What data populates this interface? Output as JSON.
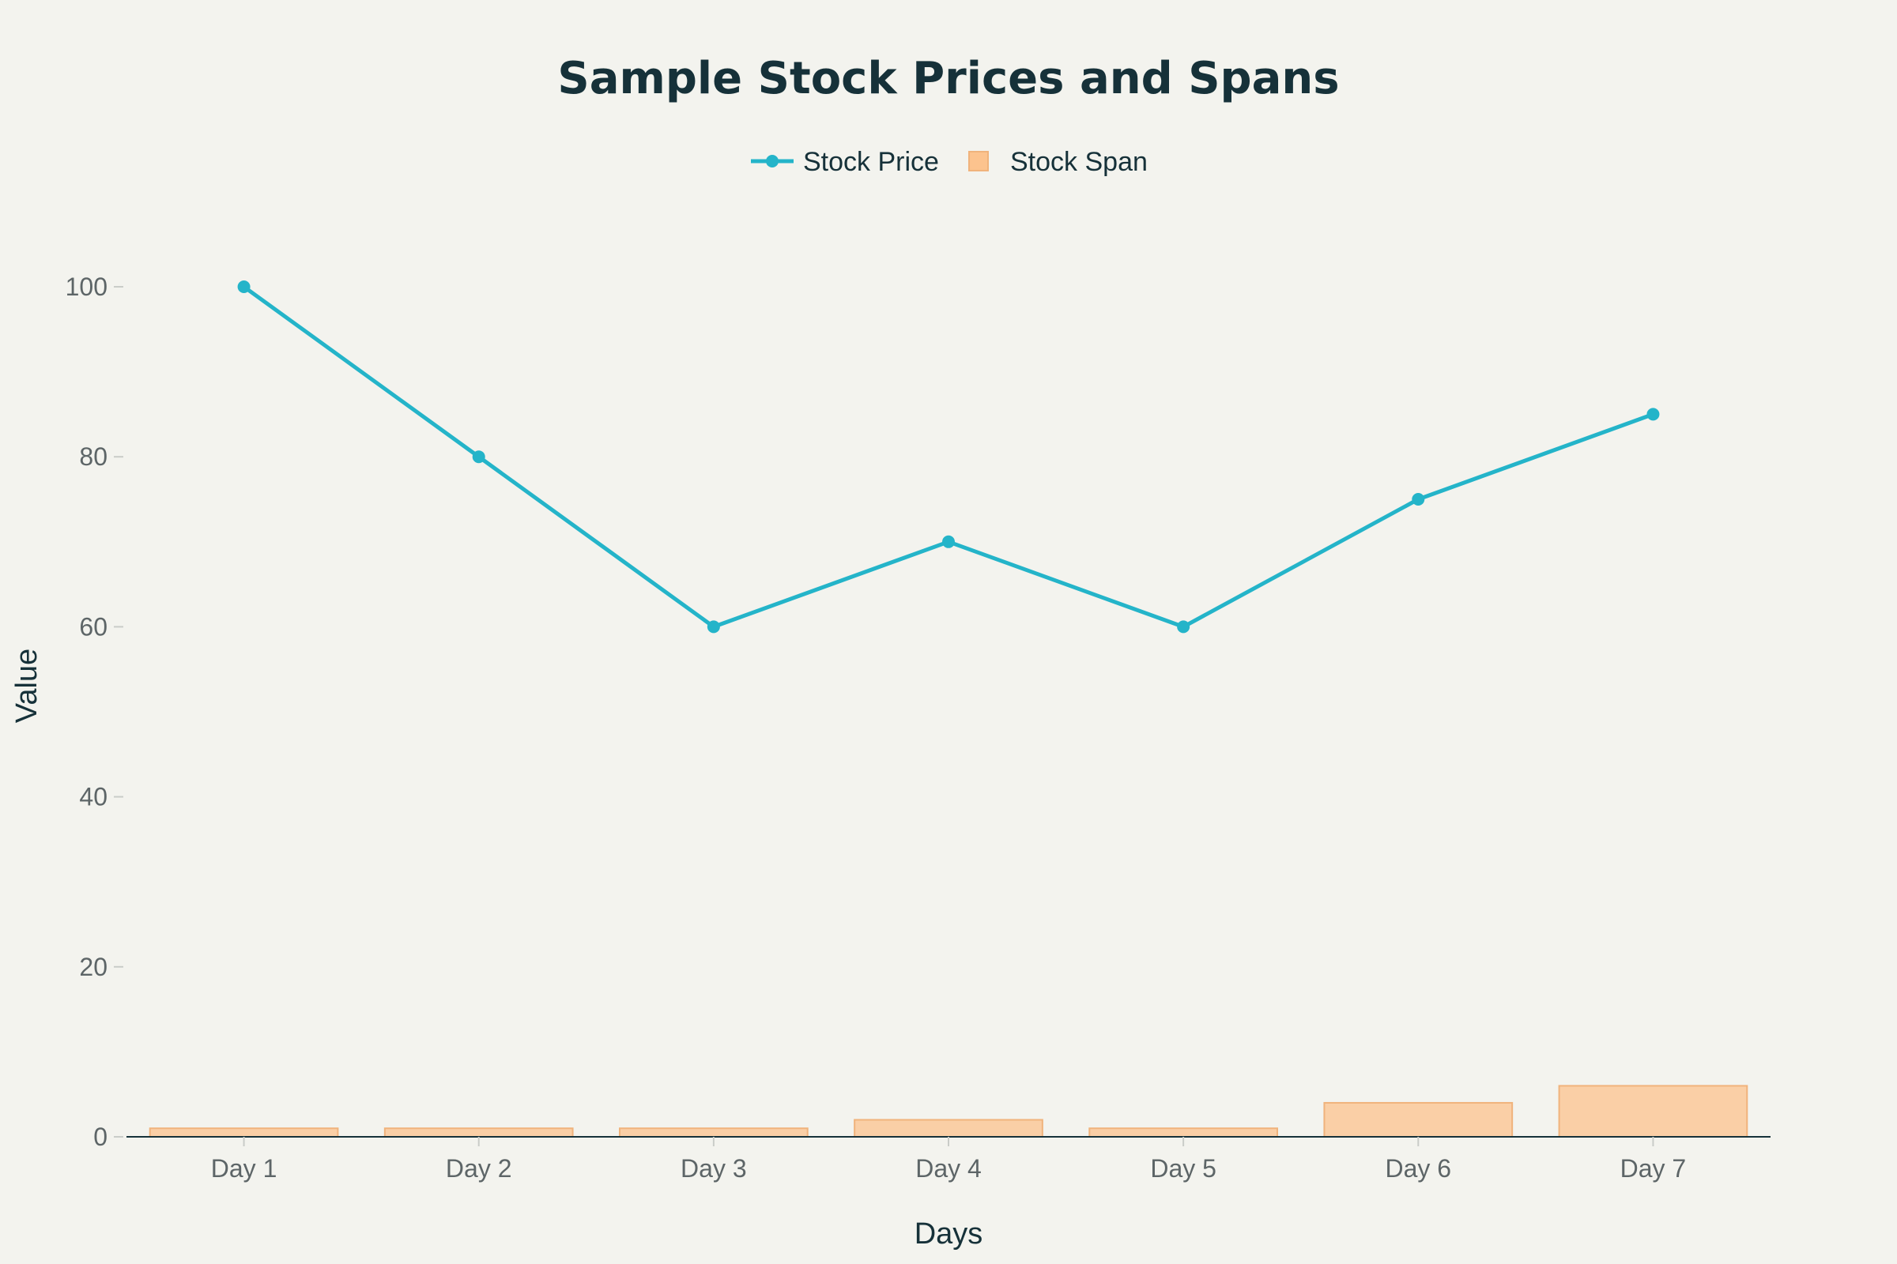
{
  "chart_data": {
    "type": "bar",
    "title": "Sample Stock Prices and Spans",
    "xlabel": "Days",
    "ylabel": "Value",
    "categories": [
      "Day 1",
      "Day 2",
      "Day 3",
      "Day 4",
      "Day 5",
      "Day 6",
      "Day 7"
    ],
    "ylim": [
      0,
      110
    ],
    "yticks": [
      0,
      20,
      40,
      60,
      80,
      100
    ],
    "grid": false,
    "legend_position": "top-center",
    "series": [
      {
        "name": "Stock Price",
        "type": "line",
        "color": "#24b4c9",
        "values": [
          100,
          80,
          60,
          70,
          60,
          75,
          85
        ]
      },
      {
        "name": "Stock Span",
        "type": "bar",
        "color": "#fcc38e",
        "values": [
          1,
          1,
          1,
          2,
          1,
          4,
          6
        ]
      }
    ]
  }
}
